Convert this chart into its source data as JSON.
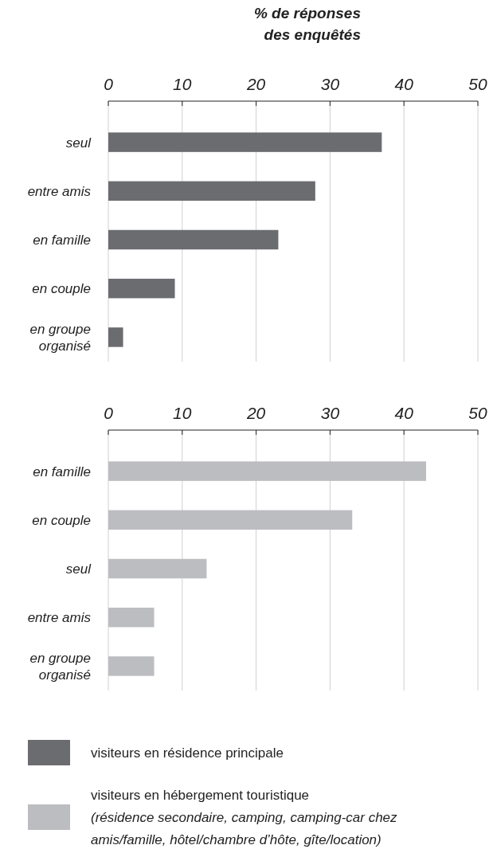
{
  "chart_data": [
    {
      "type": "bar",
      "orientation": "horizontal",
      "xlabel": "% de réponses des enquêtés",
      "categories": [
        "seul",
        "entre amis",
        "en famille",
        "en couple",
        "en groupe organisé"
      ],
      "series": [
        {
          "name": "visiteurs en résidence principale",
          "color": "#6b6c70",
          "values": [
            37,
            28,
            23,
            9,
            2
          ]
        }
      ],
      "xlim": [
        0,
        50
      ],
      "xticks": [
        0,
        10,
        20,
        30,
        40,
        50
      ],
      "grid": "x",
      "legend": "bottom"
    },
    {
      "type": "bar",
      "orientation": "horizontal",
      "categories": [
        "en famille",
        "en couple",
        "seul",
        "entre amis",
        "en groupe organisé"
      ],
      "series": [
        {
          "name": "visiteurs en hébergement touristique (résidence secondaire, camping, camping-car chez amis/famille, hôtel/chambre d’hôte, gîte/location)",
          "color": "#bcbdc1",
          "values": [
            43,
            33,
            13.3,
            6.2,
            6.2
          ]
        }
      ],
      "xlim": [
        0,
        50
      ],
      "xticks": [
        0,
        10,
        20,
        30,
        40,
        50
      ],
      "grid": "x",
      "legend": "bottom"
    }
  ]
}
